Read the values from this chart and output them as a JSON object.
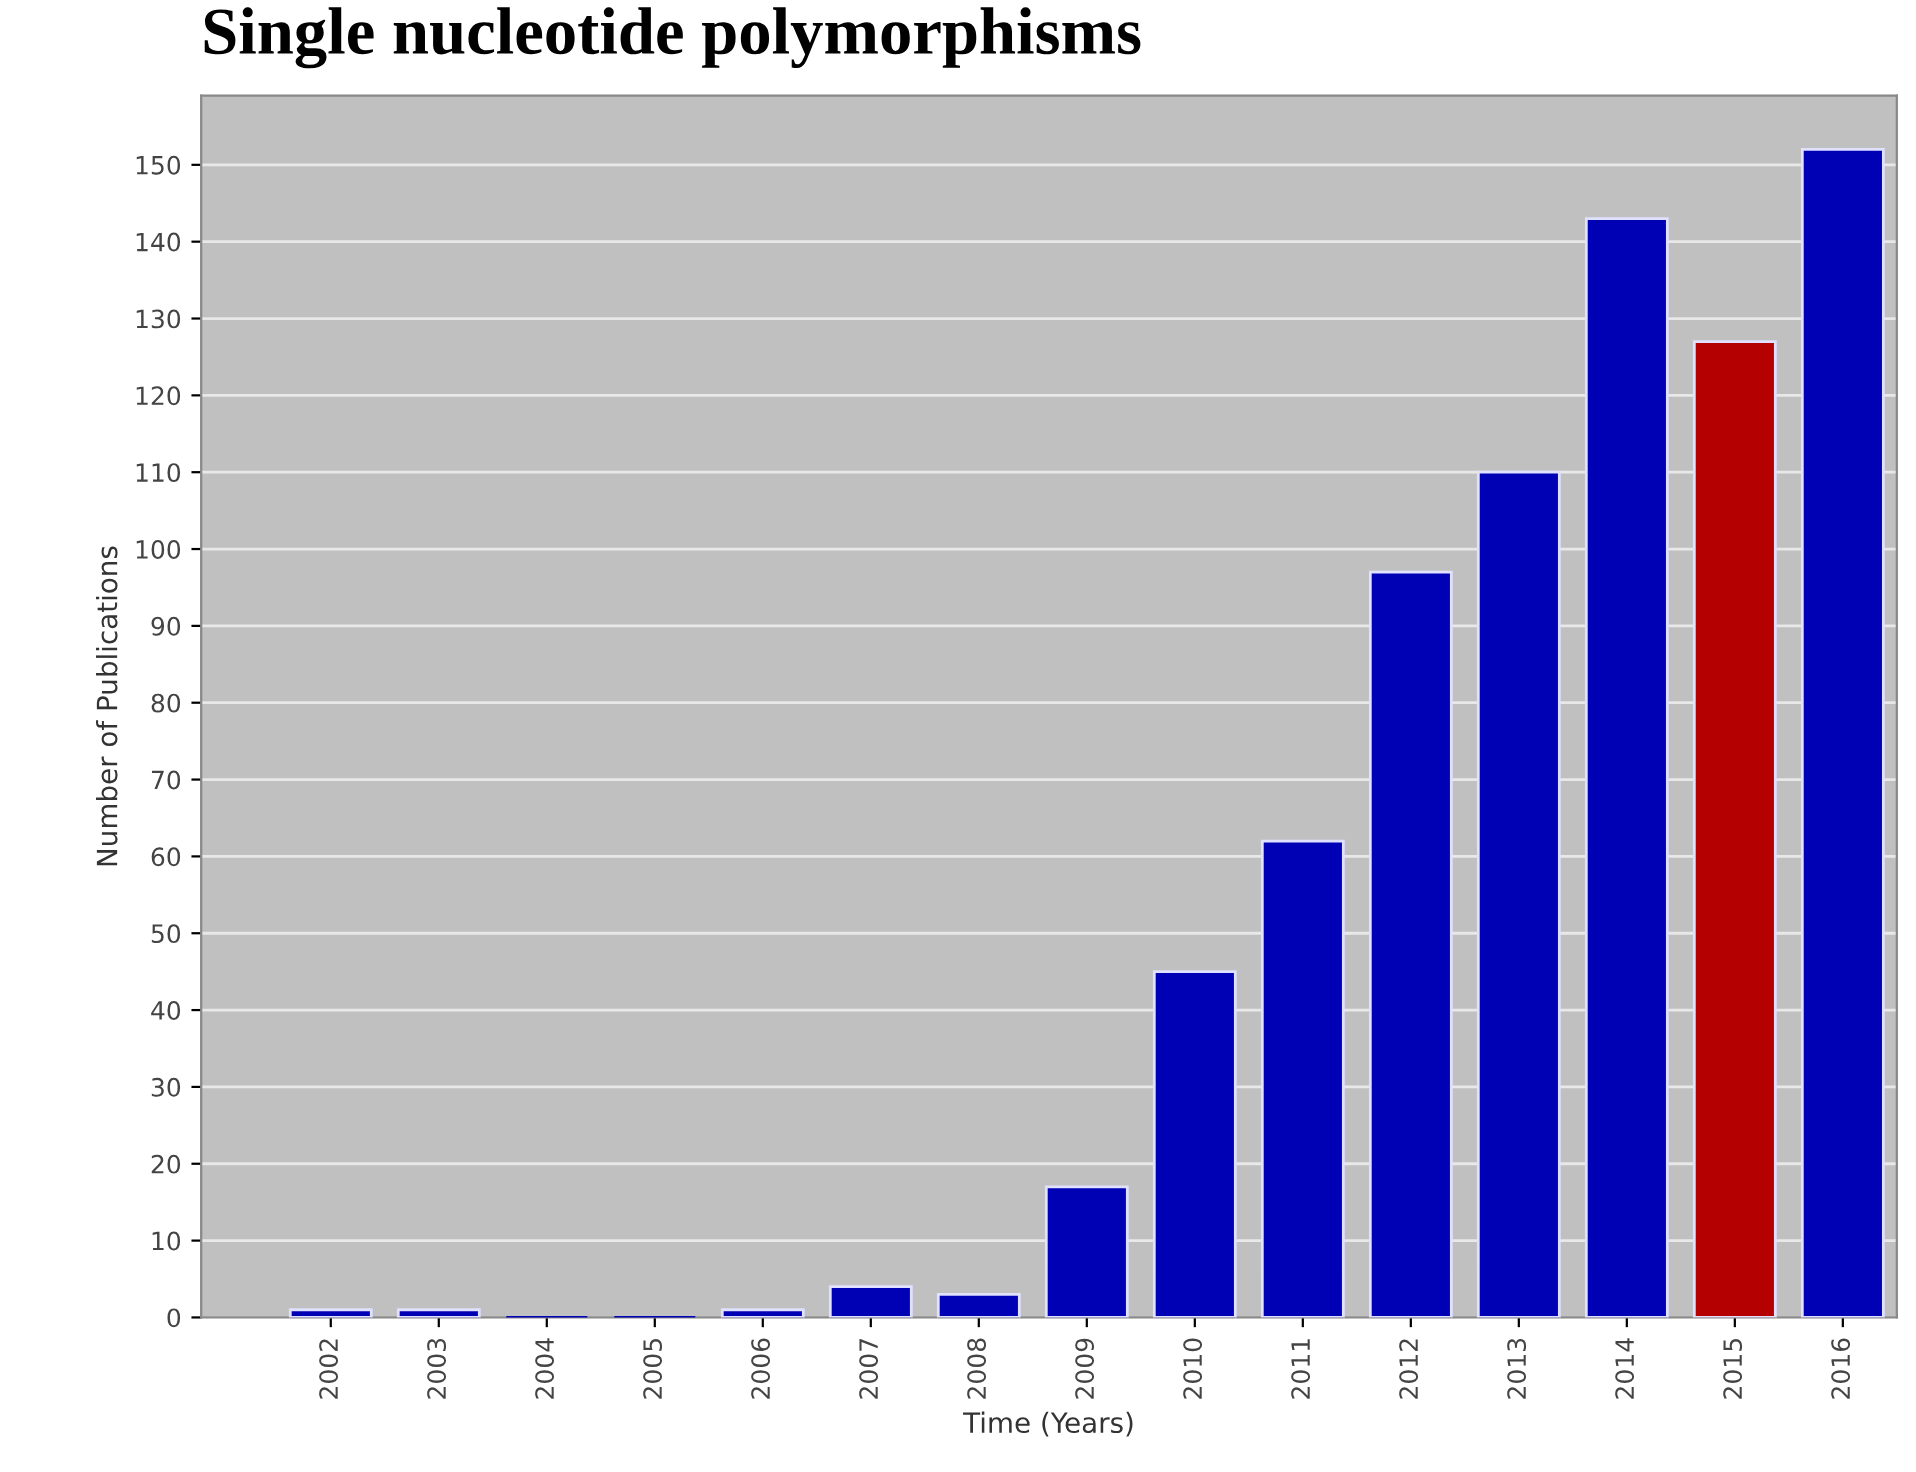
{
  "chart_data": {
    "type": "bar",
    "title": "Single nucleotide polymorphisms",
    "xlabel": "Time (Years)",
    "ylabel": "Number of Publications",
    "categories": [
      "2002",
      "2003",
      "2004",
      "2005",
      "2006",
      "2007",
      "2008",
      "2009",
      "2010",
      "2011",
      "2012",
      "2013",
      "2014",
      "2015",
      "2016"
    ],
    "values": [
      1,
      1,
      0,
      0,
      1,
      4,
      3,
      17,
      45,
      62,
      97,
      110,
      143,
      127,
      152
    ],
    "colors": [
      "#0000b4",
      "#0000b4",
      "#0000b4",
      "#0000b4",
      "#0000b4",
      "#0000b4",
      "#0000b4",
      "#0000b4",
      "#0000b4",
      "#0000b4",
      "#0000b4",
      "#0000b4",
      "#0000b4",
      "#b40000",
      "#0000b4"
    ],
    "ylim": [
      0,
      159
    ],
    "yticks": [
      0,
      10,
      20,
      30,
      40,
      50,
      60,
      70,
      80,
      90,
      100,
      110,
      120,
      130,
      140,
      150
    ],
    "grid": "y"
  }
}
